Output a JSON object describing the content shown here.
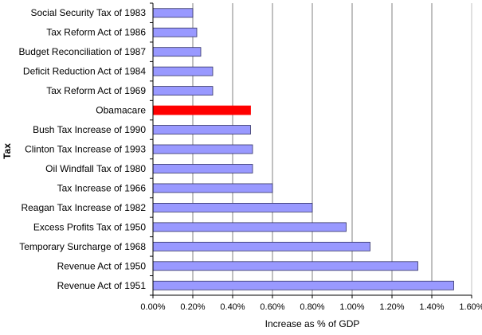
{
  "chart_data": {
    "type": "bar",
    "orientation": "horizontal",
    "title": "",
    "xlabel": "Increase as % of GDP",
    "ylabel": "Tax",
    "xlim": [
      0,
      1.6
    ],
    "xticks": [
      "0.00%",
      "0.20%",
      "0.40%",
      "0.60%",
      "0.80%",
      "1.00%",
      "1.20%",
      "1.40%",
      "1.60%"
    ],
    "grid": "vertical",
    "legend": "none",
    "categories": [
      "Social Security Tax of 1983",
      "Tax Reform Act of 1986",
      "Budget Reconciliation of 1987",
      "Deficit Reduction Act of 1984",
      "Tax Reform Act of 1969",
      "Obamacare",
      "Bush Tax Increase of 1990",
      "Clinton Tax Increase of 1993",
      "Oil Windfall Tax of 1980",
      "Tax Increase of 1966",
      "Reagan Tax Increase of 1982",
      "Excess Profits Tax of 1950",
      "Temporary Surcharge of 1968",
      "Revenue Act of 1950",
      "Revenue Act of 1951"
    ],
    "values": [
      0.2,
      0.22,
      0.24,
      0.3,
      0.3,
      0.49,
      0.49,
      0.5,
      0.5,
      0.6,
      0.8,
      0.97,
      1.09,
      1.33,
      1.51
    ],
    "colors": {
      "bar": "#9999ff",
      "bar_border": "#333366",
      "highlight": "#ff0000",
      "highlight_category": "Obamacare",
      "grid": "#808080"
    }
  }
}
